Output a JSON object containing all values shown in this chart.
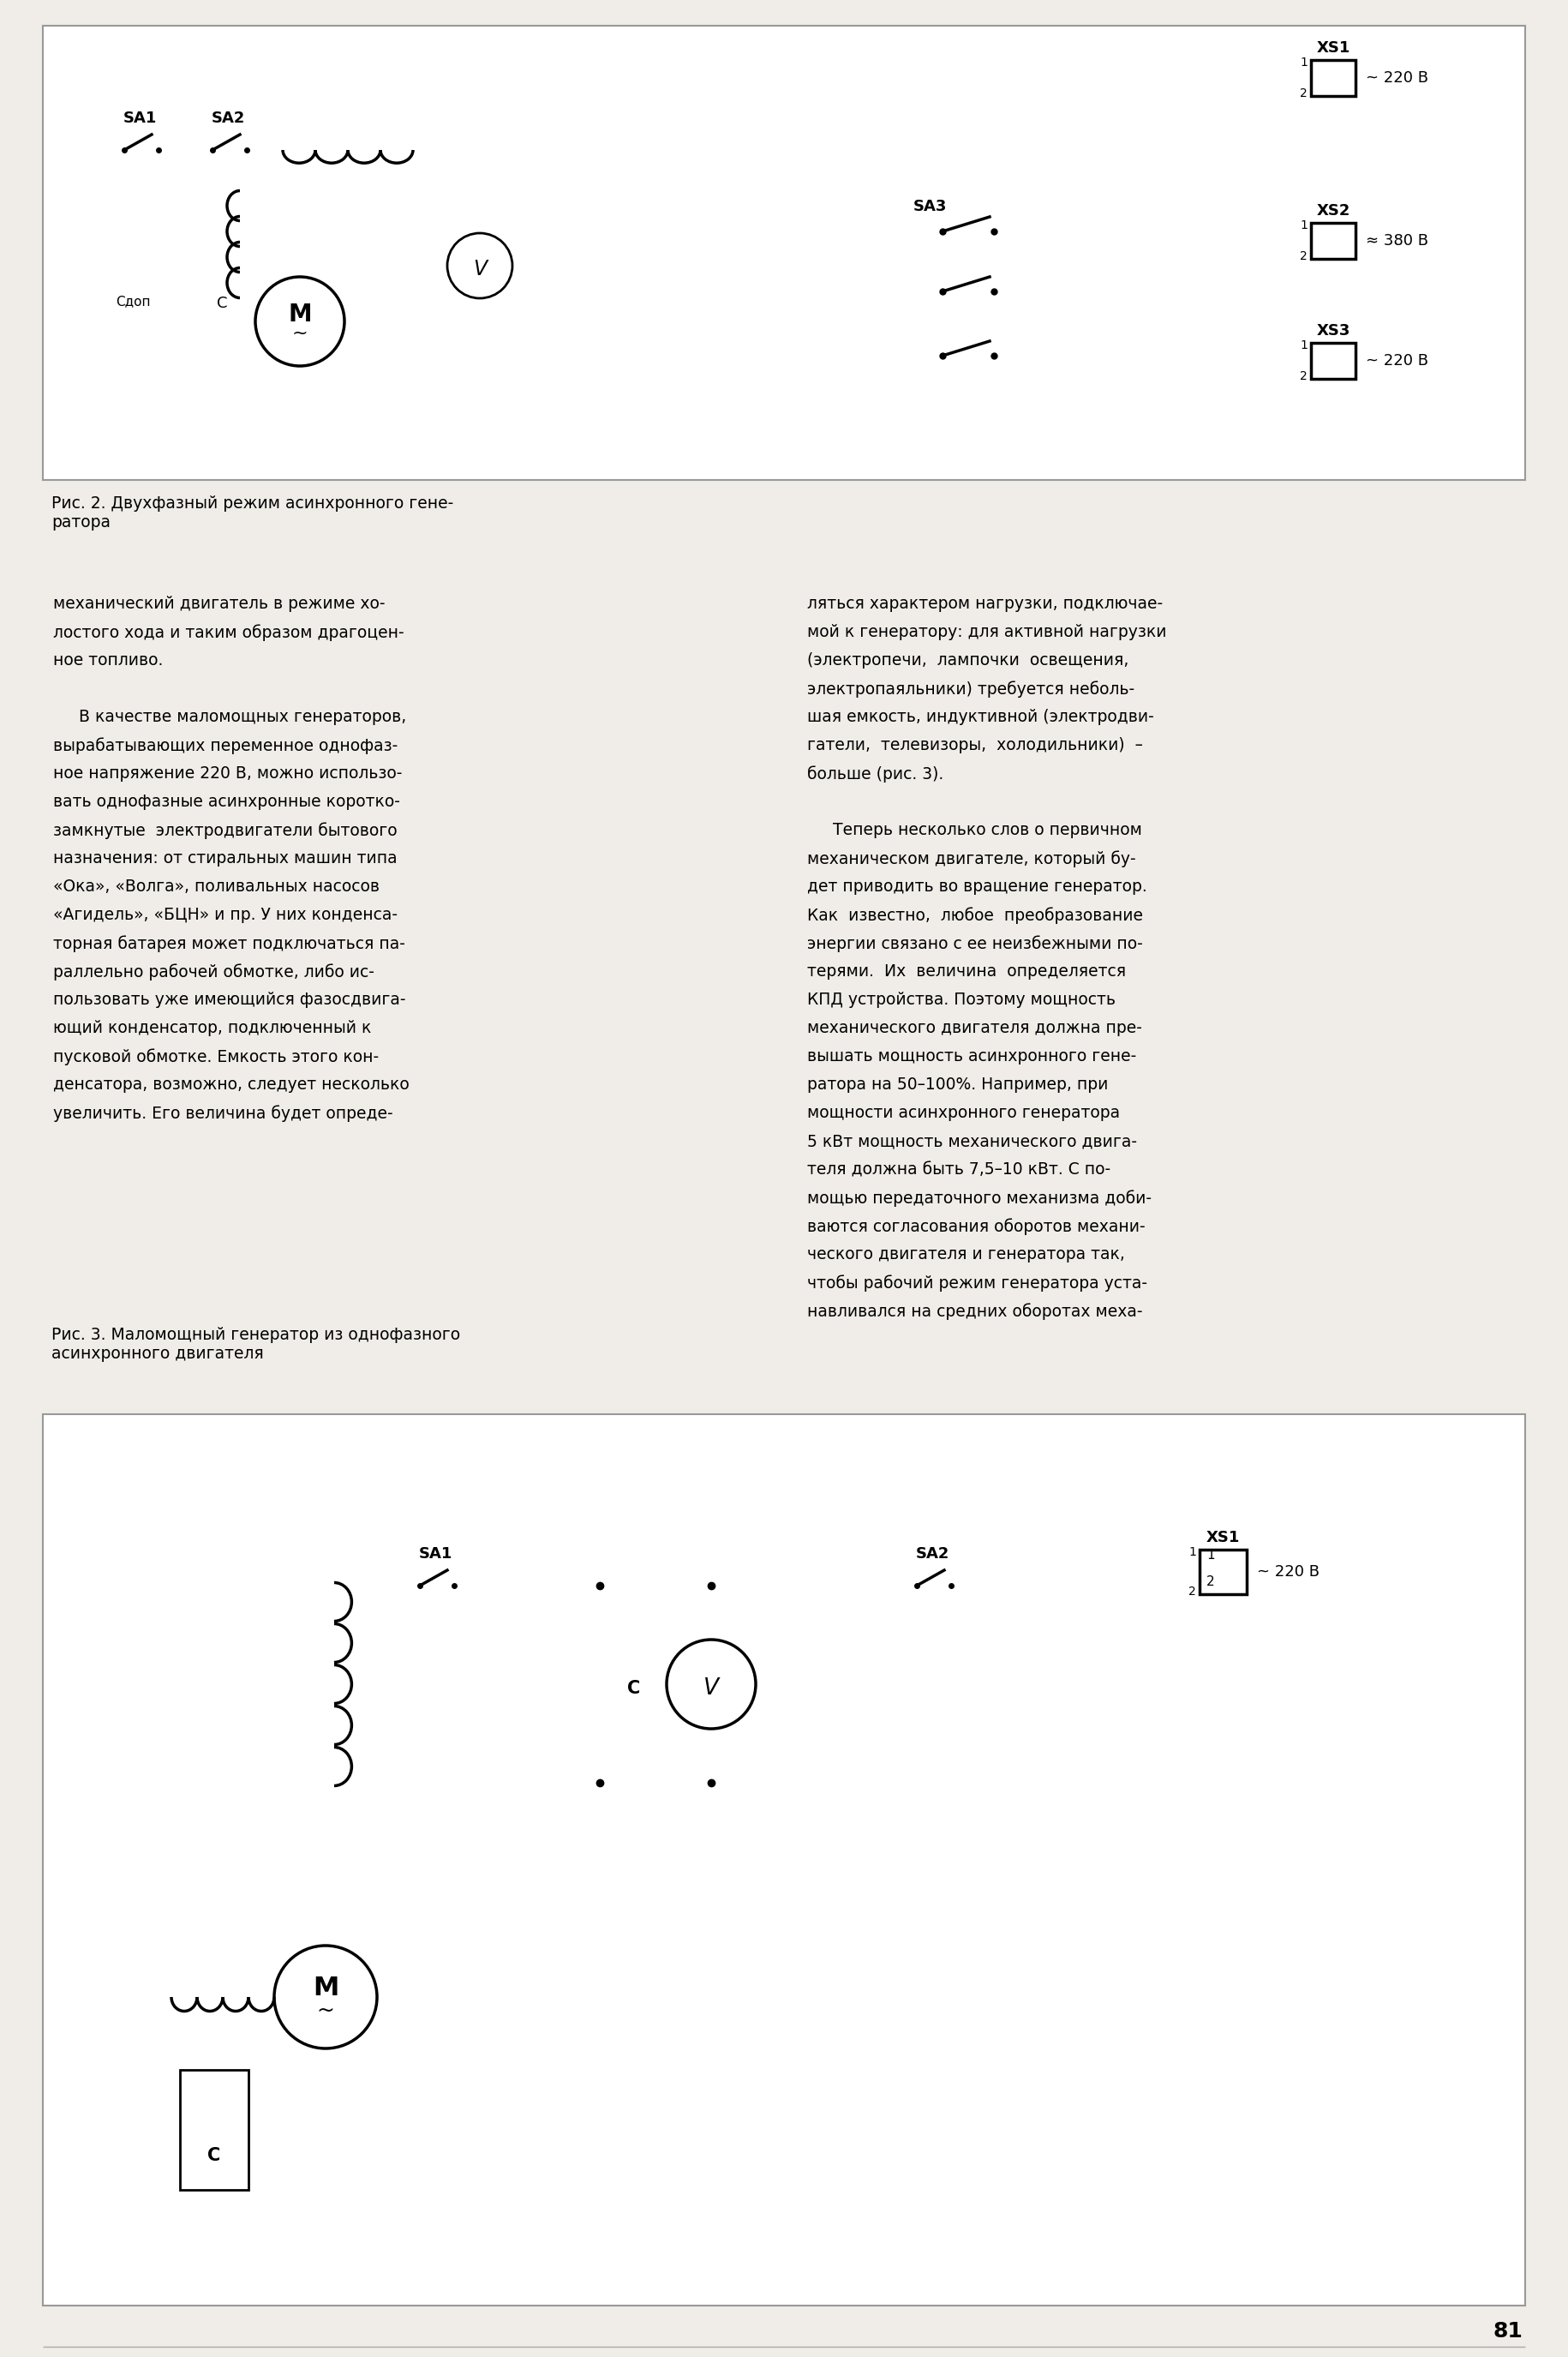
{
  "bg_color": "#f0ede8",
  "border_color": "#aaaaaa",
  "text_color": "#000000",
  "page_number": "81",
  "fig1_caption": "Рис. 2. Двухфазный режим асинхронного гене-\nратора",
  "fig3_caption": "Рис. 3. Маломощный генератор из однофазного\nасинхронного двигателя",
  "left_col_text": [
    "механический двигатель в режиме хо-",
    "лостого хода и таким образом драгоцен-",
    "ное топливо.",
    "",
    "     В качестве маломощных генераторов,",
    "вырабатывающих переменное однофаз-",
    "ное напряжение 220 В, можно использо-",
    "вать однофазные асинхронные коротко-",
    "замкнутые  электродвигатели бытового",
    "назначения: от стиральных машин типа",
    "«Ока», «Волга», поливальных насосов",
    "«Агидель», «БЦН» и пр. У них конденса-",
    "торная батарея может подключаться па-",
    "раллельно рабочей обмотке, либо ис-",
    "пользовать уже имеющийся фазосдвига-",
    "ющий конденсатор, подключенный к",
    "пусковой обмотке. Емкость этого кон-",
    "денсатора, возможно, следует несколько",
    "увеличить. Его величина будет опреде-"
  ],
  "right_col_text": [
    "ляться характером нагрузки, подключае-",
    "мой к генератору: для активной нагрузки",
    "(электропечи,  лампочки  освещения,",
    "электропаяльники) требуется неболь-",
    "шая емкость, индуктивной (электродви-",
    "гатели,  телевизоры,  холодильники)  –",
    "больше (рис. 3).",
    "",
    "     Теперь несколько слов о первичном",
    "механическом двигателе, который бу-",
    "дет приводить во вращение генератор.",
    "Как  известно,  любое  преобразование",
    "энергии связано с ее неизбежными по-",
    "терями.  Их  величина  определяется",
    "КПД устройства. Поэтому мощность",
    "механического двигателя должна пре-",
    "вышать мощность асинхронного гене-",
    "ратора на 50–100%. Например, при",
    "мощности асинхронного генератора",
    "5 кВт мощность механического двига-",
    "теля должна быть 7,5–10 кВт. С по-",
    "мощью передаточного механизма доби-",
    "ваются согласования оборотов механи-",
    "ческого двигателя и генератора так,",
    "чтобы рабочий режим генератора уста-",
    "навливался на средних оборотах меха-"
  ]
}
